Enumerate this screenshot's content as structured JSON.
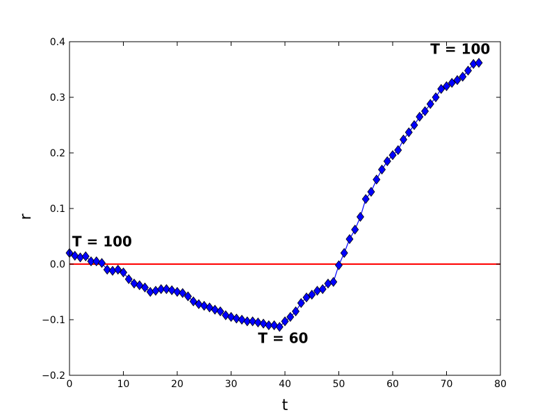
{
  "chart_data": {
    "type": "line",
    "xlabel": "t",
    "ylabel": "r",
    "xlim": [
      0,
      80
    ],
    "ylim": [
      -0.2,
      0.4
    ],
    "x_ticks": [
      0,
      10,
      20,
      30,
      40,
      50,
      60,
      70,
      80
    ],
    "y_ticks": [
      -0.2,
      -0.1,
      0.0,
      0.1,
      0.2,
      0.3,
      0.4
    ],
    "x_tick_labels": [
      "0",
      "10",
      "20",
      "30",
      "40",
      "50",
      "60",
      "70",
      "80"
    ],
    "y_tick_labels": [
      "−0.2",
      "−0.1",
      "0.0",
      "0.1",
      "0.2",
      "0.3",
      "0.4"
    ],
    "grid": false,
    "reference_line": {
      "y": 0.0,
      "color": "#ff0000"
    },
    "series": [
      {
        "color": "#0000ff",
        "marker": "diamond",
        "x": [
          0,
          1,
          2,
          3,
          4,
          5,
          6,
          7,
          8,
          9,
          10,
          11,
          12,
          13,
          14,
          15,
          16,
          17,
          18,
          19,
          20,
          21,
          22,
          23,
          24,
          25,
          26,
          27,
          28,
          29,
          30,
          31,
          32,
          33,
          34,
          35,
          36,
          37,
          38,
          39,
          40,
          41,
          42,
          43,
          44,
          45,
          46,
          47,
          48,
          49,
          50,
          51,
          52,
          53,
          54,
          55,
          56,
          57,
          58,
          59,
          60,
          61,
          62,
          63,
          64,
          65,
          66,
          67,
          68,
          69,
          70,
          71,
          72,
          73,
          74,
          75,
          76
        ],
        "y": [
          0.02,
          0.015,
          0.012,
          0.014,
          0.005,
          0.005,
          0.002,
          -0.01,
          -0.012,
          -0.01,
          -0.015,
          -0.027,
          -0.035,
          -0.038,
          -0.042,
          -0.05,
          -0.048,
          -0.045,
          -0.045,
          -0.047,
          -0.05,
          -0.052,
          -0.058,
          -0.067,
          -0.072,
          -0.075,
          -0.078,
          -0.082,
          -0.085,
          -0.092,
          -0.095,
          -0.098,
          -0.1,
          -0.103,
          -0.103,
          -0.105,
          -0.107,
          -0.11,
          -0.11,
          -0.113,
          -0.103,
          -0.095,
          -0.085,
          -0.07,
          -0.06,
          -0.055,
          -0.048,
          -0.045,
          -0.035,
          -0.032,
          -0.002,
          0.02,
          0.045,
          0.062,
          0.085,
          0.117,
          0.13,
          0.152,
          0.17,
          0.185,
          0.196,
          0.205,
          0.224,
          0.237,
          0.25,
          0.265,
          0.275,
          0.288,
          0.3,
          0.315,
          0.32,
          0.326,
          0.331,
          0.337,
          0.348,
          0.36,
          0.362
        ]
      }
    ],
    "annotations": [
      {
        "text": "T = 100",
        "x": 0.5,
        "y": 0.032
      },
      {
        "text": "T = 60",
        "x": 35,
        "y": -0.142
      },
      {
        "text": "T = 100",
        "x": 67,
        "y": 0.378
      }
    ]
  }
}
